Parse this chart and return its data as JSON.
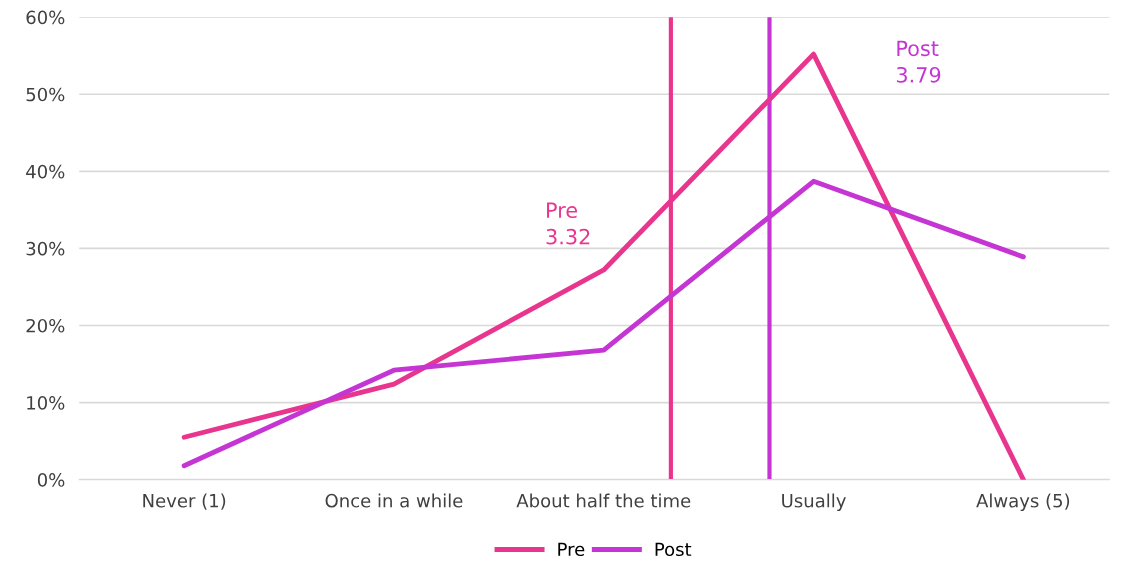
{
  "chart_data": {
    "type": "line",
    "x": [
      1,
      2,
      3,
      4,
      5
    ],
    "series": [
      {
        "name": "Pre",
        "color": "#e8368f",
        "values": [
          5.5,
          12.4,
          27.2,
          55.2,
          0
        ]
      },
      {
        "name": "Post",
        "color": "#c535d3",
        "values": [
          1.8,
          14.2,
          16.8,
          38.7,
          28.9
        ]
      }
    ],
    "xlim": [
      0.5,
      5.41
    ],
    "xticks": [
      {
        "value": 1,
        "label": "Never (1)"
      },
      {
        "value": 2,
        "label": "Once in a while"
      },
      {
        "value": 3,
        "label": "About half the time"
      },
      {
        "value": 4,
        "label": "Usually"
      },
      {
        "value": 5,
        "label": "Always (5)"
      }
    ],
    "ylim": [
      0,
      60
    ],
    "yticks": [
      {
        "value": 0,
        "label": "0%"
      },
      {
        "value": 10,
        "label": "10%"
      },
      {
        "value": 20,
        "label": "20%"
      },
      {
        "value": 30,
        "label": "30%"
      },
      {
        "value": 40,
        "label": "40%"
      },
      {
        "value": 50,
        "label": "50%"
      },
      {
        "value": 60,
        "label": "60%"
      }
    ],
    "ref_lines": [
      {
        "axis": "x",
        "value": 3.32,
        "label": "Pre\n3.32",
        "color": "#e8368f"
      },
      {
        "axis": "x",
        "value": 3.79,
        "label": "Post\n3.79",
        "color": "#c535d3"
      }
    ],
    "grid": "y",
    "legend": "bottom",
    "marker": "none",
    "line_style": "solid"
  }
}
